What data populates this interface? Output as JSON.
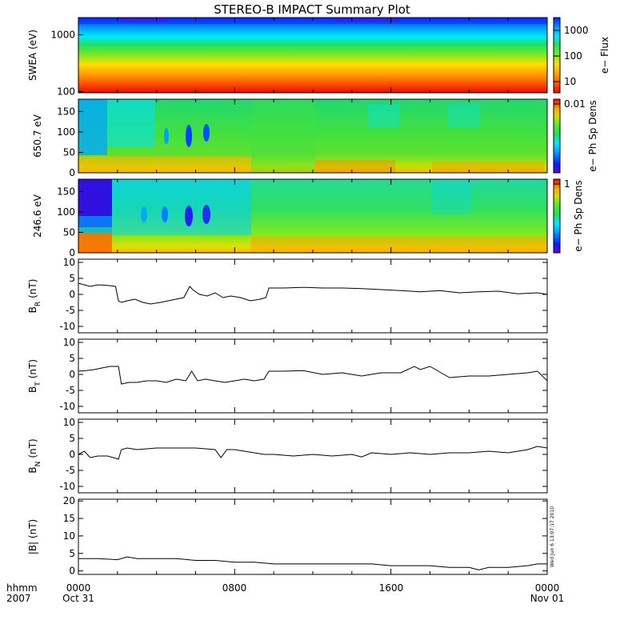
{
  "title": "STEREO-B IMPACT Summary Plot",
  "timestamp": "Wed Jun  6 13:07:17 2010",
  "colors": {
    "ink": "#000000",
    "background": "#ffffff",
    "colormap": [
      "#6a00d8",
      "#0020ff",
      "#00a0ff",
      "#00e8ff",
      "#20e060",
      "#50e830",
      "#c8e000",
      "#ffb000",
      "#ff5000",
      "#e01000"
    ]
  },
  "chart_data": [
    {
      "type": "heatmap",
      "panel": "swea",
      "ylabel": "SWEA (eV)",
      "yscale": "log",
      "ylim": [
        95,
        2000
      ],
      "yticks": [
        "100",
        "1000"
      ],
      "colorbar_label": "e− Flux",
      "colorbar_scale": "log",
      "colorbar_ticks": [
        "1000",
        "100",
        "10"
      ]
    },
    {
      "type": "heatmap",
      "panel": "pad650",
      "ylabel": "650.7 eV",
      "ylim": [
        0,
        180
      ],
      "yticks": [
        "0",
        "50",
        "100",
        "150"
      ],
      "colorbar_label": "e− Ph Sp Dens",
      "colorbar_ticks": [
        "0.01"
      ]
    },
    {
      "type": "heatmap",
      "panel": "pad246",
      "ylabel": "246.6 eV",
      "ylim": [
        0,
        180
      ],
      "yticks": [
        "0",
        "50",
        "100",
        "150"
      ],
      "colorbar_label": "e− Ph Sp Dens",
      "colorbar_ticks": [
        "1"
      ]
    },
    {
      "type": "line",
      "panel": "br",
      "ylabel": "B",
      "ylabel_sub": "R",
      "ylabel_unit": "(nT)",
      "ylim": [
        -12,
        11
      ],
      "yticks": [
        "-10",
        "-5",
        "0",
        "5",
        "10"
      ],
      "x_hours": [
        0,
        0.3,
        0.6,
        1,
        1.5,
        1.9,
        2.05,
        2.2,
        2.5,
        2.9,
        3.3,
        3.7,
        4.2,
        4.6,
        5.0,
        5.4,
        5.7,
        5.85,
        6.2,
        6.6,
        7.0,
        7.4,
        7.8,
        8.3,
        8.8,
        9.3,
        9.6,
        9.75,
        10.5,
        11.5,
        12.5,
        13.5,
        14.5,
        15.5,
        16.5,
        17.5,
        18.5,
        19.5,
        20.5,
        21.5,
        22.5,
        23.5,
        24
      ],
      "values": [
        3.5,
        3,
        2.5,
        3,
        2.8,
        2.5,
        -2,
        -2.5,
        -2,
        -1.5,
        -2.5,
        -3,
        -2.5,
        -2,
        -1.5,
        -1,
        2.5,
        1.5,
        0,
        -0.5,
        0.5,
        -1,
        -0.5,
        -1,
        -2,
        -1.5,
        -1,
        2,
        2,
        2.2,
        2,
        2,
        1.8,
        1.5,
        1.2,
        0.8,
        1.2,
        0.5,
        0.8,
        1,
        0.2,
        0.5,
        0
      ]
    },
    {
      "type": "line",
      "panel": "bt",
      "ylabel": "B",
      "ylabel_sub": "T",
      "ylabel_unit": "(nT)",
      "ylim": [
        -12,
        11
      ],
      "yticks": [
        "-10",
        "-5",
        "0",
        "5",
        "10"
      ],
      "x_hours": [
        0,
        0.4,
        0.8,
        1.2,
        1.6,
        2.05,
        2.2,
        2.6,
        3.0,
        3.5,
        4.0,
        4.5,
        5.0,
        5.5,
        5.8,
        6.1,
        6.5,
        7.0,
        7.5,
        8.0,
        8.5,
        9.0,
        9.5,
        9.75,
        10.5,
        11.5,
        12.5,
        13.5,
        14.5,
        15.5,
        16.5,
        17.2,
        17.5,
        18.0,
        19.0,
        20.0,
        21.0,
        22.0,
        23.0,
        23.5,
        24
      ],
      "values": [
        1,
        1.2,
        1.5,
        2,
        2.5,
        2.5,
        -3,
        -2.5,
        -2.5,
        -2,
        -2,
        -2.5,
        -1.5,
        -2,
        1,
        -2,
        -1.5,
        -2,
        -2.5,
        -2,
        -1.5,
        -2,
        -1.5,
        1,
        1,
        1.2,
        0,
        0.5,
        -0.5,
        0.5,
        0.5,
        2.5,
        1.5,
        2.5,
        -1,
        -0.5,
        -0.5,
        0,
        0.5,
        1,
        -2
      ]
    },
    {
      "type": "line",
      "panel": "bn",
      "ylabel": "B",
      "ylabel_sub": "N",
      "ylabel_unit": "(nT)",
      "ylim": [
        -12,
        11
      ],
      "yticks": [
        "-10",
        "-5",
        "0",
        "5",
        "10"
      ],
      "x_hours": [
        0,
        0.3,
        0.6,
        1.0,
        1.5,
        2.05,
        2.2,
        2.5,
        3.0,
        4.0,
        5.0,
        6.0,
        7.0,
        7.3,
        7.6,
        8.0,
        8.5,
        9.0,
        9.5,
        10.0,
        11.0,
        12.0,
        13.0,
        14.0,
        14.5,
        15.0,
        16.0,
        17.0,
        18.0,
        19.0,
        20.0,
        21.0,
        22.0,
        23.0,
        23.5,
        24
      ],
      "values": [
        0,
        1,
        -1,
        -0.5,
        -0.5,
        -1.5,
        1.5,
        2,
        1.5,
        2,
        2,
        2,
        1.5,
        -1,
        1.5,
        1.5,
        1,
        0.5,
        0,
        0,
        -0.5,
        0,
        -0.5,
        0,
        -0.8,
        0.5,
        0,
        0.5,
        0,
        0.5,
        0.5,
        1,
        0.5,
        1.5,
        2.5,
        2
      ]
    },
    {
      "type": "line",
      "panel": "babs",
      "ylabel": "|B| (nT)",
      "ylim": [
        -1,
        20.5
      ],
      "yticks": [
        "0",
        "5",
        "10",
        "15",
        "20"
      ],
      "x_hours": [
        0,
        1,
        2,
        2.5,
        3,
        4,
        5,
        6,
        7,
        8,
        9,
        10,
        11,
        12,
        13,
        14,
        15,
        16,
        17,
        18,
        19,
        20,
        20.5,
        21,
        22,
        23,
        23.5,
        24
      ],
      "values": [
        3.5,
        3.5,
        3.2,
        4,
        3.5,
        3.5,
        3.5,
        3,
        3,
        2.5,
        2.5,
        2,
        2,
        2,
        2,
        2,
        2,
        1.5,
        1.5,
        1.5,
        1,
        1,
        0.3,
        1,
        1,
        1.5,
        2,
        2
      ]
    }
  ],
  "x_axis": {
    "row1": [
      "hhmm",
      "0000",
      "0800",
      "1600",
      "0000"
    ],
    "row2": [
      "2007",
      "Oct 31",
      "Nov 01"
    ]
  }
}
